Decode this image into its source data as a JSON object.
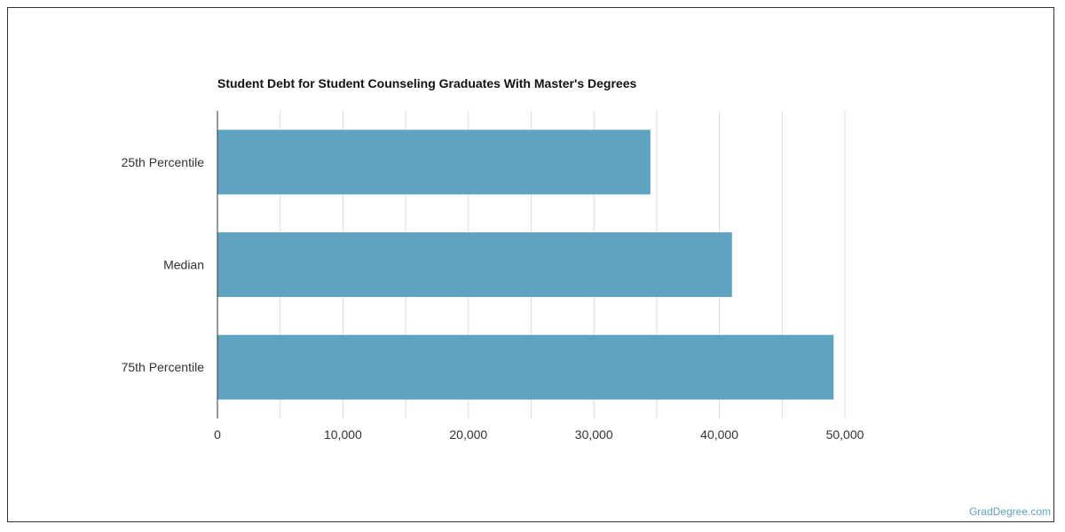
{
  "chart_data": {
    "type": "bar",
    "orientation": "horizontal",
    "title": "Student Debt for Student Counseling Graduates With Master's Degrees",
    "xlabel": "",
    "ylabel": "",
    "categories": [
      "25th Percentile",
      "Median",
      "75th Percentile"
    ],
    "values": [
      34500,
      41000,
      49100
    ],
    "xlim": [
      0,
      50000
    ],
    "x_ticks": [
      0,
      10000,
      20000,
      30000,
      40000,
      50000
    ],
    "x_tick_labels": [
      "0",
      "10,000",
      "20,000",
      "30,000",
      "40,000",
      "50,000"
    ],
    "grid": true,
    "legend": "none",
    "bar_color": "#5ea3bf"
  },
  "watermark": "GradDegree.com"
}
